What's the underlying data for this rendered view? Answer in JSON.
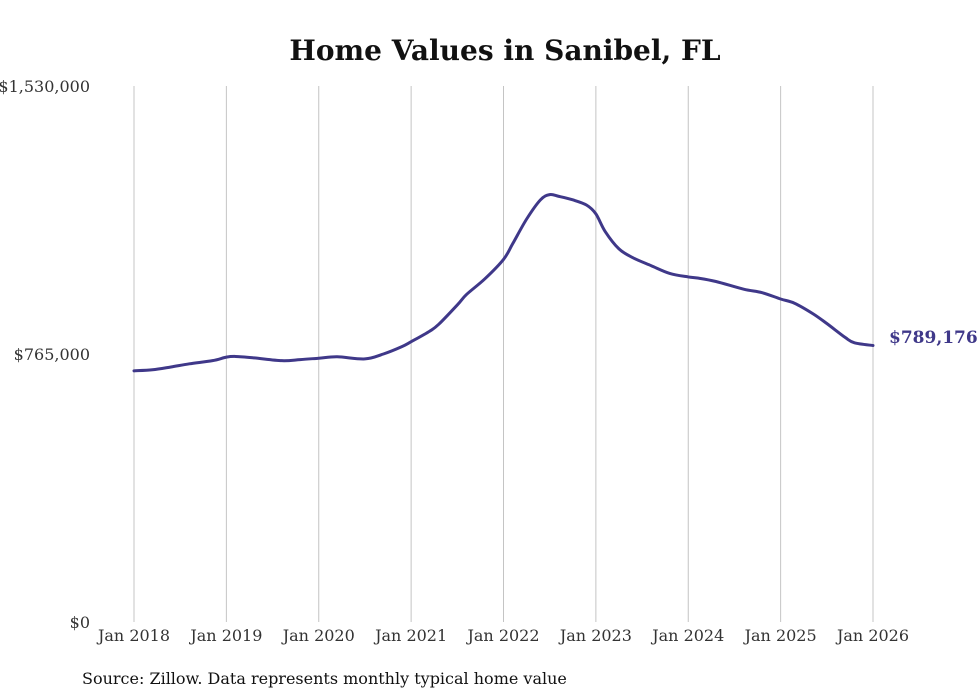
{
  "chart_data": {
    "type": "line",
    "title": "Home Values in Sanibel, FL",
    "xlabel": "",
    "ylabel": "",
    "source": "Source: Zillow. Data represents monthly typical home value",
    "grid": "vertical",
    "colors": {
      "line": "#3f3889",
      "grid": "#c4c4c4",
      "text": "#333333"
    },
    "x_ticks": [
      "Jan 2018",
      "Jan 2019",
      "Jan 2020",
      "Jan 2021",
      "Jan 2022",
      "Jan 2023",
      "Jan 2024",
      "Jan 2025",
      "Jan 2026"
    ],
    "y_ticks": [
      {
        "value": 0,
        "label": "$0"
      },
      {
        "value": 765000,
        "label": "$765,000"
      },
      {
        "value": 1530000,
        "label": "$1,530,000"
      }
    ],
    "ylim": [
      0,
      1530000
    ],
    "xlim": [
      2018.0,
      2026.0
    ],
    "end_label": "$789,176",
    "series": [
      {
        "name": "Typical home value",
        "x": [
          2018.0,
          2018.2,
          2018.4,
          2018.6,
          2018.85,
          2019.0,
          2019.1,
          2019.3,
          2019.6,
          2019.8,
          2020.0,
          2020.2,
          2020.5,
          2020.7,
          2020.9,
          2021.0,
          2021.2,
          2021.3,
          2021.5,
          2021.6,
          2021.8,
          2022.0,
          2022.1,
          2022.25,
          2022.4,
          2022.5,
          2022.6,
          2022.75,
          2022.9,
          2023.0,
          2023.1,
          2023.25,
          2023.4,
          2023.6,
          2023.8,
          2024.0,
          2024.1,
          2024.3,
          2024.6,
          2024.8,
          2025.0,
          2025.15,
          2025.35,
          2025.5,
          2025.7,
          2025.8,
          2026.0
        ],
        "values": [
          717000,
          720000,
          728000,
          737000,
          746000,
          756000,
          758000,
          754000,
          746000,
          749000,
          753000,
          757000,
          751000,
          765000,
          786000,
          800000,
          830000,
          850000,
          905000,
          935000,
          980000,
          1035000,
          1080000,
          1150000,
          1205000,
          1220000,
          1215000,
          1205000,
          1190000,
          1165000,
          1115000,
          1065000,
          1040000,
          1017000,
          995000,
          985000,
          982000,
          972000,
          950000,
          940000,
          922000,
          910000,
          880000,
          852000,
          812000,
          797000,
          789176
        ]
      }
    ]
  }
}
